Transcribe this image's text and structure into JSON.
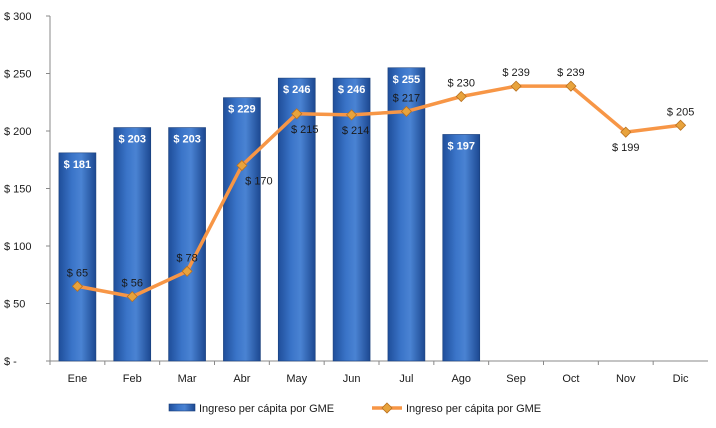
{
  "chart_data": {
    "type": "bar",
    "categories": [
      "Ene",
      "Feb",
      "Mar",
      "Abr",
      "May",
      "Jun",
      "Jul",
      "Ago",
      "Sep",
      "Oct",
      "Nov",
      "Dic"
    ],
    "ylim": [
      0,
      300
    ],
    "yticks": [
      0,
      50,
      100,
      150,
      200,
      250,
      300
    ],
    "ytick_labels": [
      "$ -",
      "$ 50",
      "$ 100",
      "$ 150",
      "$ 200",
      "$ 250",
      "$ 300"
    ],
    "grid": false,
    "legend_position": "bottom",
    "series": [
      {
        "name": "Ingreso per cápita por GME",
        "type": "bar",
        "color": "#2e65b8",
        "values": [
          181,
          203,
          203,
          229,
          246,
          246,
          255,
          197,
          null,
          null,
          null,
          null
        ],
        "labels": [
          "$ 181",
          "$ 203",
          "$ 203",
          "$ 229",
          "$ 246",
          "$ 246",
          "$ 255",
          "$ 197",
          "",
          "",
          "",
          ""
        ]
      },
      {
        "name": "Ingreso per cápita por GME",
        "type": "line",
        "color": "#f79646",
        "marker_color": "#e8a33c",
        "values": [
          65,
          56,
          78,
          170,
          215,
          214,
          217,
          230,
          239,
          239,
          199,
          205
        ],
        "labels": [
          "$ 65",
          "$ 56",
          "$ 78",
          "$ 170",
          "$ 215",
          "$ 214",
          "$ 217",
          "$ 230",
          "$ 239",
          "$ 239",
          "$ 199",
          "$ 205"
        ]
      }
    ]
  }
}
